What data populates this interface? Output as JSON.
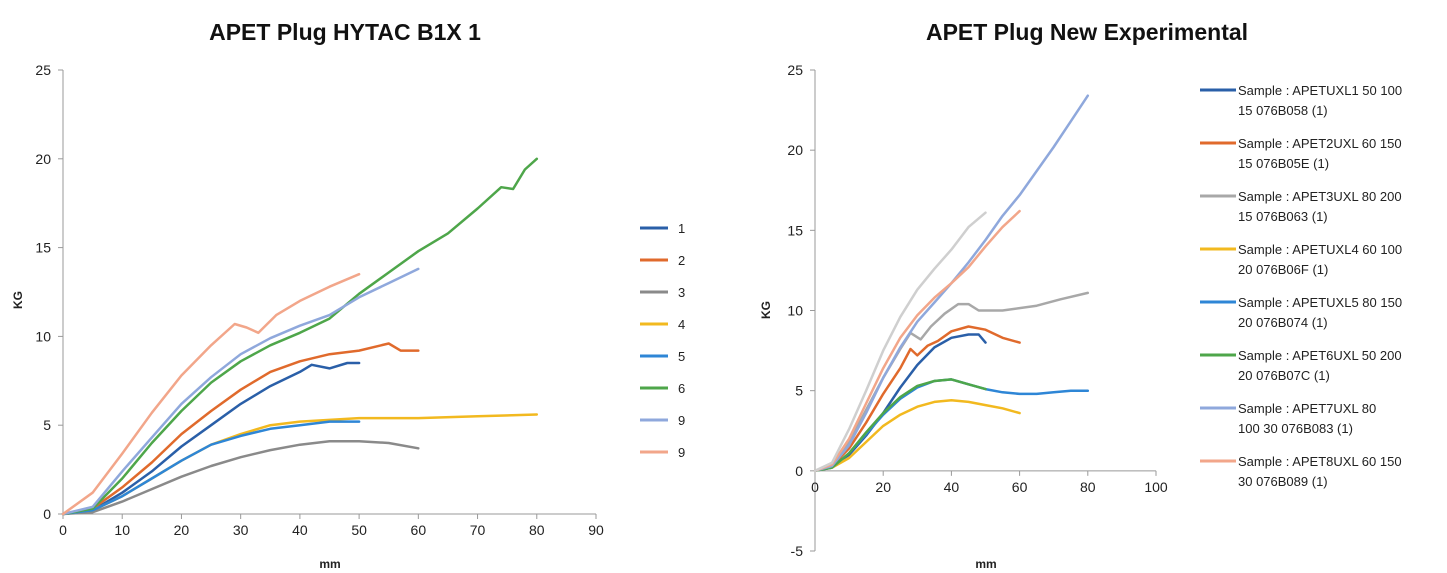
{
  "chart_data": [
    {
      "type": "line",
      "title": "APET Plug HYTAC B1X 1",
      "xlabel": "mm",
      "ylabel": "KG",
      "xlim": [
        0,
        90
      ],
      "ylim": [
        0,
        25
      ],
      "xticks": [
        0,
        10,
        20,
        30,
        40,
        50,
        60,
        70,
        80,
        90
      ],
      "yticks": [
        0,
        5,
        10,
        15,
        20,
        25
      ],
      "grid": false,
      "legend_position": "right",
      "series": [
        {
          "name": "1",
          "color": "#2a5fa8",
          "points": [
            [
              0,
              0
            ],
            [
              5,
              0.2
            ],
            [
              10,
              1.2
            ],
            [
              15,
              2.4
            ],
            [
              20,
              3.8
            ],
            [
              25,
              5.0
            ],
            [
              30,
              6.2
            ],
            [
              35,
              7.2
            ],
            [
              40,
              8.0
            ],
            [
              42,
              8.4
            ],
            [
              45,
              8.2
            ],
            [
              48,
              8.5
            ],
            [
              50,
              8.5
            ]
          ]
        },
        {
          "name": "2",
          "color": "#e06a2c",
          "points": [
            [
              0,
              0
            ],
            [
              5,
              0.3
            ],
            [
              10,
              1.5
            ],
            [
              15,
              2.9
            ],
            [
              20,
              4.5
            ],
            [
              25,
              5.8
            ],
            [
              30,
              7.0
            ],
            [
              35,
              8.0
            ],
            [
              40,
              8.6
            ],
            [
              45,
              9.0
            ],
            [
              50,
              9.2
            ],
            [
              55,
              9.6
            ],
            [
              57,
              9.2
            ],
            [
              60,
              9.2
            ]
          ]
        },
        {
          "name": "3",
          "color": "#8a8a8a",
          "points": [
            [
              0,
              0
            ],
            [
              5,
              0.1
            ],
            [
              10,
              0.7
            ],
            [
              15,
              1.4
            ],
            [
              20,
              2.1
            ],
            [
              25,
              2.7
            ],
            [
              30,
              3.2
            ],
            [
              35,
              3.6
            ],
            [
              40,
              3.9
            ],
            [
              45,
              4.1
            ],
            [
              50,
              4.1
            ],
            [
              55,
              4.0
            ],
            [
              60,
              3.7
            ]
          ]
        },
        {
          "name": "4",
          "color": "#f2b91f",
          "points": [
            [
              0,
              0
            ],
            [
              5,
              0.2
            ],
            [
              10,
              1.0
            ],
            [
              15,
              2.0
            ],
            [
              20,
              3.0
            ],
            [
              25,
              3.9
            ],
            [
              30,
              4.5
            ],
            [
              35,
              5.0
            ],
            [
              40,
              5.2
            ],
            [
              45,
              5.3
            ],
            [
              50,
              5.4
            ],
            [
              60,
              5.4
            ],
            [
              70,
              5.5
            ],
            [
              80,
              5.6
            ]
          ]
        },
        {
          "name": "5",
          "color": "#2e86d6",
          "points": [
            [
              0,
              0
            ],
            [
              5,
              0.2
            ],
            [
              10,
              1.0
            ],
            [
              15,
              2.0
            ],
            [
              20,
              3.0
            ],
            [
              25,
              3.9
            ],
            [
              30,
              4.4
            ],
            [
              35,
              4.8
            ],
            [
              40,
              5.0
            ],
            [
              45,
              5.2
            ],
            [
              50,
              5.2
            ]
          ]
        },
        {
          "name": "6",
          "color": "#4ea64a",
          "points": [
            [
              0,
              0
            ],
            [
              5,
              0.3
            ],
            [
              10,
              2.0
            ],
            [
              15,
              4.0
            ],
            [
              20,
              5.8
            ],
            [
              25,
              7.4
            ],
            [
              30,
              8.6
            ],
            [
              35,
              9.5
            ],
            [
              40,
              10.2
            ],
            [
              45,
              11.0
            ],
            [
              50,
              12.4
            ],
            [
              55,
              13.6
            ],
            [
              60,
              14.8
            ],
            [
              65,
              15.8
            ],
            [
              70,
              17.2
            ],
            [
              74,
              18.4
            ],
            [
              76,
              18.3
            ],
            [
              78,
              19.4
            ],
            [
              80,
              20.0
            ]
          ]
        },
        {
          "name": "9",
          "color": "#8fa8dc",
          "points": [
            [
              0,
              0
            ],
            [
              5,
              0.4
            ],
            [
              10,
              2.4
            ],
            [
              15,
              4.3
            ],
            [
              20,
              6.2
            ],
            [
              25,
              7.7
            ],
            [
              30,
              9.0
            ],
            [
              35,
              9.9
            ],
            [
              40,
              10.6
            ],
            [
              45,
              11.2
            ],
            [
              50,
              12.2
            ],
            [
              55,
              13.0
            ],
            [
              60,
              13.8
            ]
          ]
        },
        {
          "name": "9",
          "color": "#f2a68a",
          "points": [
            [
              0,
              0
            ],
            [
              5,
              1.2
            ],
            [
              10,
              3.4
            ],
            [
              15,
              5.7
            ],
            [
              20,
              7.8
            ],
            [
              25,
              9.5
            ],
            [
              29,
              10.7
            ],
            [
              31,
              10.5
            ],
            [
              33,
              10.2
            ],
            [
              36,
              11.2
            ],
            [
              40,
              12.0
            ],
            [
              45,
              12.8
            ],
            [
              50,
              13.5
            ]
          ]
        }
      ]
    },
    {
      "type": "line",
      "title": "APET Plug New Experimental",
      "xlabel": "mm",
      "ylabel": "KG",
      "xlim": [
        0,
        100
      ],
      "ylim": [
        -5,
        25
      ],
      "xticks": [
        0,
        20,
        40,
        60,
        80,
        100
      ],
      "yticks": [
        -5,
        0,
        5,
        10,
        15,
        20,
        25
      ],
      "grid": false,
      "legend_position": "right",
      "series": [
        {
          "name_lines": [
            "Sample : APETUXL1 50 100",
            "15 076B058 (1)"
          ],
          "color": "#2a5fa8",
          "points": [
            [
              0,
              0
            ],
            [
              5,
              0.3
            ],
            [
              10,
              1.0
            ],
            [
              15,
              2.2
            ],
            [
              20,
              3.6
            ],
            [
              25,
              5.2
            ],
            [
              30,
              6.6
            ],
            [
              35,
              7.7
            ],
            [
              40,
              8.3
            ],
            [
              45,
              8.5
            ],
            [
              48,
              8.5
            ],
            [
              50,
              8.0
            ]
          ]
        },
        {
          "name_lines": [
            "Sample : APET2UXL 60 150",
            "15 076B05E (1)"
          ],
          "color": "#e06a2c",
          "points": [
            [
              0,
              0
            ],
            [
              5,
              0.3
            ],
            [
              10,
              1.4
            ],
            [
              15,
              3.0
            ],
            [
              20,
              4.8
            ],
            [
              25,
              6.4
            ],
            [
              28,
              7.6
            ],
            [
              30,
              7.2
            ],
            [
              33,
              7.8
            ],
            [
              36,
              8.1
            ],
            [
              40,
              8.7
            ],
            [
              45,
              9.0
            ],
            [
              50,
              8.8
            ],
            [
              55,
              8.3
            ],
            [
              60,
              8.0
            ]
          ]
        },
        {
          "name_lines": [
            "Sample : APET3UXL 80 200",
            "15 076B063 (1)"
          ],
          "color": "#a8a8a8",
          "points": [
            [
              0,
              0
            ],
            [
              5,
              0.3
            ],
            [
              10,
              1.8
            ],
            [
              15,
              3.8
            ],
            [
              20,
              5.8
            ],
            [
              25,
              7.6
            ],
            [
              28,
              8.6
            ],
            [
              31,
              8.2
            ],
            [
              34,
              9.0
            ],
            [
              38,
              9.8
            ],
            [
              42,
              10.4
            ],
            [
              45,
              10.4
            ],
            [
              48,
              10.0
            ],
            [
              55,
              10.0
            ],
            [
              65,
              10.3
            ],
            [
              72,
              10.7
            ],
            [
              80,
              11.1
            ]
          ]
        },
        {
          "name_lines": [
            "Sample : APETUXL4 60 100",
            "20 076B06F (1)"
          ],
          "color": "#f2b91f",
          "points": [
            [
              0,
              0
            ],
            [
              5,
              0.2
            ],
            [
              10,
              0.8
            ],
            [
              15,
              1.8
            ],
            [
              20,
              2.8
            ],
            [
              25,
              3.5
            ],
            [
              30,
              4.0
            ],
            [
              35,
              4.3
            ],
            [
              40,
              4.4
            ],
            [
              45,
              4.3
            ],
            [
              50,
              4.1
            ],
            [
              55,
              3.9
            ],
            [
              60,
              3.6
            ]
          ]
        },
        {
          "name_lines": [
            "Sample : APETUXL5 80 150",
            "20 076B074 (1)"
          ],
          "color": "#2e86d6",
          "points": [
            [
              0,
              0
            ],
            [
              5,
              0.2
            ],
            [
              10,
              1.1
            ],
            [
              15,
              2.3
            ],
            [
              20,
              3.5
            ],
            [
              25,
              4.5
            ],
            [
              30,
              5.2
            ],
            [
              35,
              5.6
            ],
            [
              40,
              5.7
            ],
            [
              45,
              5.4
            ],
            [
              50,
              5.1
            ],
            [
              55,
              4.9
            ],
            [
              60,
              4.8
            ],
            [
              65,
              4.8
            ],
            [
              70,
              4.9
            ],
            [
              75,
              5.0
            ],
            [
              80,
              5.0
            ]
          ]
        },
        {
          "name_lines": [
            "Sample : APET6UXL 50 200",
            "20 076B07C (1)"
          ],
          "color": "#4ea64a",
          "points": [
            [
              0,
              0
            ],
            [
              5,
              0.2
            ],
            [
              10,
              1.1
            ],
            [
              15,
              2.4
            ],
            [
              20,
              3.6
            ],
            [
              25,
              4.6
            ],
            [
              30,
              5.3
            ],
            [
              35,
              5.6
            ],
            [
              40,
              5.7
            ],
            [
              45,
              5.4
            ],
            [
              50,
              5.1
            ]
          ]
        },
        {
          "name_lines": [
            "Sample : APET7UXL  80",
            "100 30 076B083 (1)"
          ],
          "color": "#8fa8dc",
          "points": [
            [
              0,
              0
            ],
            [
              5,
              0.3
            ],
            [
              10,
              1.6
            ],
            [
              15,
              3.6
            ],
            [
              20,
              5.8
            ],
            [
              25,
              7.7
            ],
            [
              30,
              9.3
            ],
            [
              35,
              10.5
            ],
            [
              40,
              11.7
            ],
            [
              45,
              13.0
            ],
            [
              50,
              14.4
            ],
            [
              55,
              15.9
            ],
            [
              60,
              17.2
            ],
            [
              65,
              18.7
            ],
            [
              70,
              20.2
            ],
            [
              75,
              21.8
            ],
            [
              80,
              23.4
            ]
          ]
        },
        {
          "name_lines": [
            "Sample : APET8UXL 60 150",
            "30 076B089 (1)"
          ],
          "color": "#f2a68a",
          "points": [
            [
              0,
              0
            ],
            [
              5,
              0.4
            ],
            [
              10,
              2.0
            ],
            [
              15,
              4.2
            ],
            [
              20,
              6.4
            ],
            [
              25,
              8.3
            ],
            [
              30,
              9.7
            ],
            [
              35,
              10.8
            ],
            [
              40,
              11.7
            ],
            [
              45,
              12.7
            ],
            [
              50,
              14.0
            ],
            [
              55,
              15.2
            ],
            [
              60,
              16.2
            ]
          ]
        },
        {
          "name": "",
          "color": "#cfcfcf",
          "points": [
            [
              0,
              0
            ],
            [
              5,
              0.5
            ],
            [
              10,
              2.6
            ],
            [
              15,
              5.0
            ],
            [
              20,
              7.5
            ],
            [
              25,
              9.6
            ],
            [
              30,
              11.3
            ],
            [
              35,
              12.6
            ],
            [
              40,
              13.8
            ],
            [
              45,
              15.2
            ],
            [
              50,
              16.1
            ]
          ]
        }
      ]
    }
  ]
}
